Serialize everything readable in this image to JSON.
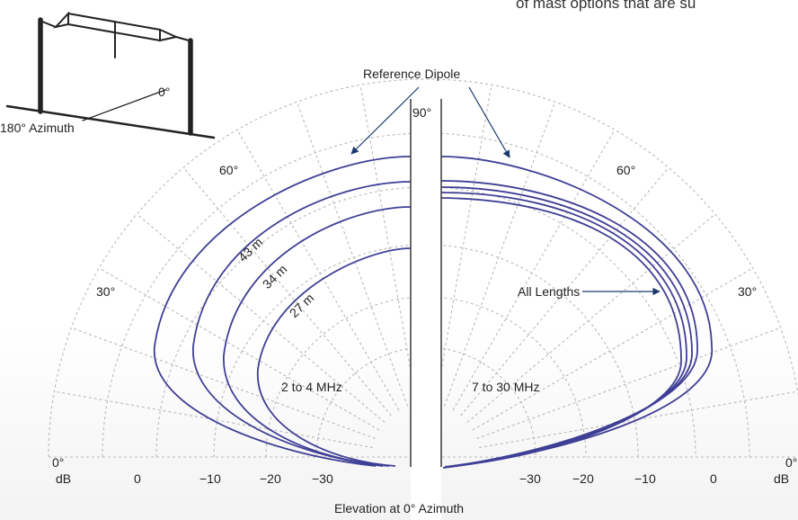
{
  "header_text_fragment": "of mast options that are su",
  "inset": {
    "azimuth_180_label": "180° Azimuth",
    "azimuth_0_label": "0°"
  },
  "polar": {
    "labels": {
      "reference_dipole": "Reference Dipole",
      "angle_90": "90°",
      "angle_60_left": "60°",
      "angle_60_right": "60°",
      "angle_30_left": "30°",
      "angle_30_right": "30°",
      "angle_0_left": "0°",
      "angle_0_right": "0°",
      "len_43": "43 m",
      "len_34": "34 m",
      "len_27": "27 m",
      "all_lengths": "All Lengths",
      "band_left": "2 to 4 MHz",
      "band_right": "7 to 30 MHz",
      "db_left": "dB",
      "db_right": "dB",
      "x_label": "Elevation at 0° Azimuth"
    },
    "db_ticks_left": [
      "0",
      "−10",
      "−20",
      "−30"
    ],
    "db_ticks_right": [
      "−30",
      "−20",
      "−10",
      "0"
    ],
    "colors": {
      "trace": "#3f3f96",
      "grid": "#b9b9b9",
      "arrow": "#1b3a6e"
    }
  }
}
